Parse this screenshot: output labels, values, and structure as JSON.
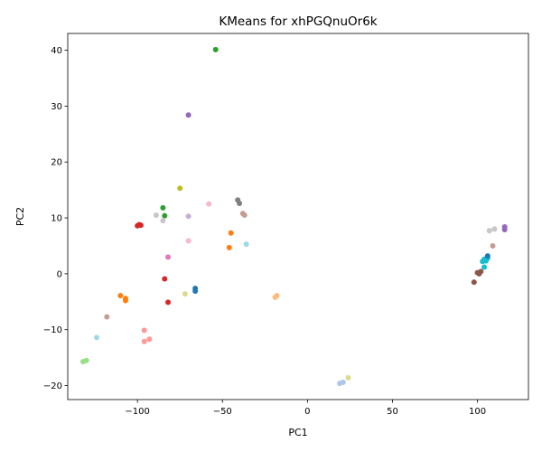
{
  "chart_data": {
    "type": "scatter",
    "title": "KMeans for xhPGQnuOr6k",
    "xlabel": "PC1",
    "ylabel": "PC2",
    "xlim": [
      -141,
      130
    ],
    "ylim": [
      -22.5,
      43
    ],
    "xticks": [
      -100,
      -50,
      0,
      50,
      100
    ],
    "yticks": [
      -20,
      -10,
      0,
      10,
      20,
      30,
      40
    ],
    "grid": false,
    "legend": "none",
    "points": [
      {
        "x": -54,
        "y": 40.1,
        "color": "#2ca02c"
      },
      {
        "x": -70,
        "y": 28.4,
        "color": "#9467bd"
      },
      {
        "x": -75,
        "y": 15.3,
        "color": "#bcbd22"
      },
      {
        "x": -85,
        "y": 11.8,
        "color": "#2ca02c"
      },
      {
        "x": -84,
        "y": 10.4,
        "color": "#2ca02c"
      },
      {
        "x": -89,
        "y": 10.5,
        "color": "#c7c7c7"
      },
      {
        "x": -85,
        "y": 9.5,
        "color": "#c7c7c7"
      },
      {
        "x": -99,
        "y": 8.8,
        "color": "#d62728"
      },
      {
        "x": -100,
        "y": 8.6,
        "color": "#d62728"
      },
      {
        "x": -98,
        "y": 8.7,
        "color": "#d62728"
      },
      {
        "x": -58,
        "y": 12.5,
        "color": "#f7b6d2"
      },
      {
        "x": -70,
        "y": 10.3,
        "color": "#c5b0d5"
      },
      {
        "x": -41,
        "y": 13.2,
        "color": "#7f7f7f"
      },
      {
        "x": -40,
        "y": 12.6,
        "color": "#7f7f7f"
      },
      {
        "x": -38,
        "y": 10.8,
        "color": "#c49c94"
      },
      {
        "x": -37,
        "y": 10.5,
        "color": "#c49c94"
      },
      {
        "x": -45,
        "y": 7.3,
        "color": "#ff7f0e"
      },
      {
        "x": -46,
        "y": 4.7,
        "color": "#ff7f0e"
      },
      {
        "x": -70,
        "y": 5.9,
        "color": "#f7b6d2"
      },
      {
        "x": -36,
        "y": 5.3,
        "color": "#9edae5"
      },
      {
        "x": -82,
        "y": 3.0,
        "color": "#e377c2"
      },
      {
        "x": -84,
        "y": -0.9,
        "color": "#d62728"
      },
      {
        "x": -82,
        "y": -5.1,
        "color": "#d62728"
      },
      {
        "x": -66,
        "y": -2.6,
        "color": "#1f77b4"
      },
      {
        "x": -66,
        "y": -3.1,
        "color": "#1f77b4"
      },
      {
        "x": -72,
        "y": -3.6,
        "color": "#dbdb8d"
      },
      {
        "x": -110,
        "y": -3.9,
        "color": "#ff7f0e"
      },
      {
        "x": -107,
        "y": -4.4,
        "color": "#ff7f0e"
      },
      {
        "x": -107,
        "y": -4.8,
        "color": "#ff7f0e"
      },
      {
        "x": -19,
        "y": -4.2,
        "color": "#ffbb78"
      },
      {
        "x": -18,
        "y": -3.9,
        "color": "#ffbb78"
      },
      {
        "x": -118,
        "y": -7.7,
        "color": "#c49c94"
      },
      {
        "x": -96,
        "y": -10.1,
        "color": "#ff9896"
      },
      {
        "x": -93,
        "y": -11.7,
        "color": "#ff9896"
      },
      {
        "x": -96,
        "y": -12.1,
        "color": "#ff9896"
      },
      {
        "x": -124,
        "y": -11.4,
        "color": "#9edae5"
      },
      {
        "x": -132,
        "y": -15.7,
        "color": "#98df8a"
      },
      {
        "x": -130,
        "y": -15.5,
        "color": "#98df8a"
      },
      {
        "x": 24,
        "y": -18.6,
        "color": "#dbdb8d"
      },
      {
        "x": 19,
        "y": -19.6,
        "color": "#aec7e8"
      },
      {
        "x": 21,
        "y": -19.4,
        "color": "#aec7e8"
      },
      {
        "x": 98,
        "y": -1.5,
        "color": "#8c564b"
      },
      {
        "x": 101,
        "y": 0.0,
        "color": "#8c564b"
      },
      {
        "x": 102,
        "y": 0.4,
        "color": "#8c564b"
      },
      {
        "x": 100,
        "y": 0.2,
        "color": "#8c564b"
      },
      {
        "x": 104,
        "y": 1.2,
        "color": "#17becf"
      },
      {
        "x": 103,
        "y": 2.2,
        "color": "#17becf"
      },
      {
        "x": 104,
        "y": 2.6,
        "color": "#17becf"
      },
      {
        "x": 105,
        "y": 2.3,
        "color": "#17becf"
      },
      {
        "x": 106,
        "y": 2.8,
        "color": "#17becf"
      },
      {
        "x": 106,
        "y": 3.2,
        "color": "#1f77b4"
      },
      {
        "x": 107,
        "y": 7.7,
        "color": "#c7c7c7"
      },
      {
        "x": 110,
        "y": 8.0,
        "color": "#c7c7c7"
      },
      {
        "x": 109,
        "y": 5.0,
        "color": "#c49c94"
      },
      {
        "x": 116,
        "y": 8.4,
        "color": "#9467bd"
      },
      {
        "x": 116,
        "y": 7.9,
        "color": "#9467bd"
      }
    ]
  }
}
